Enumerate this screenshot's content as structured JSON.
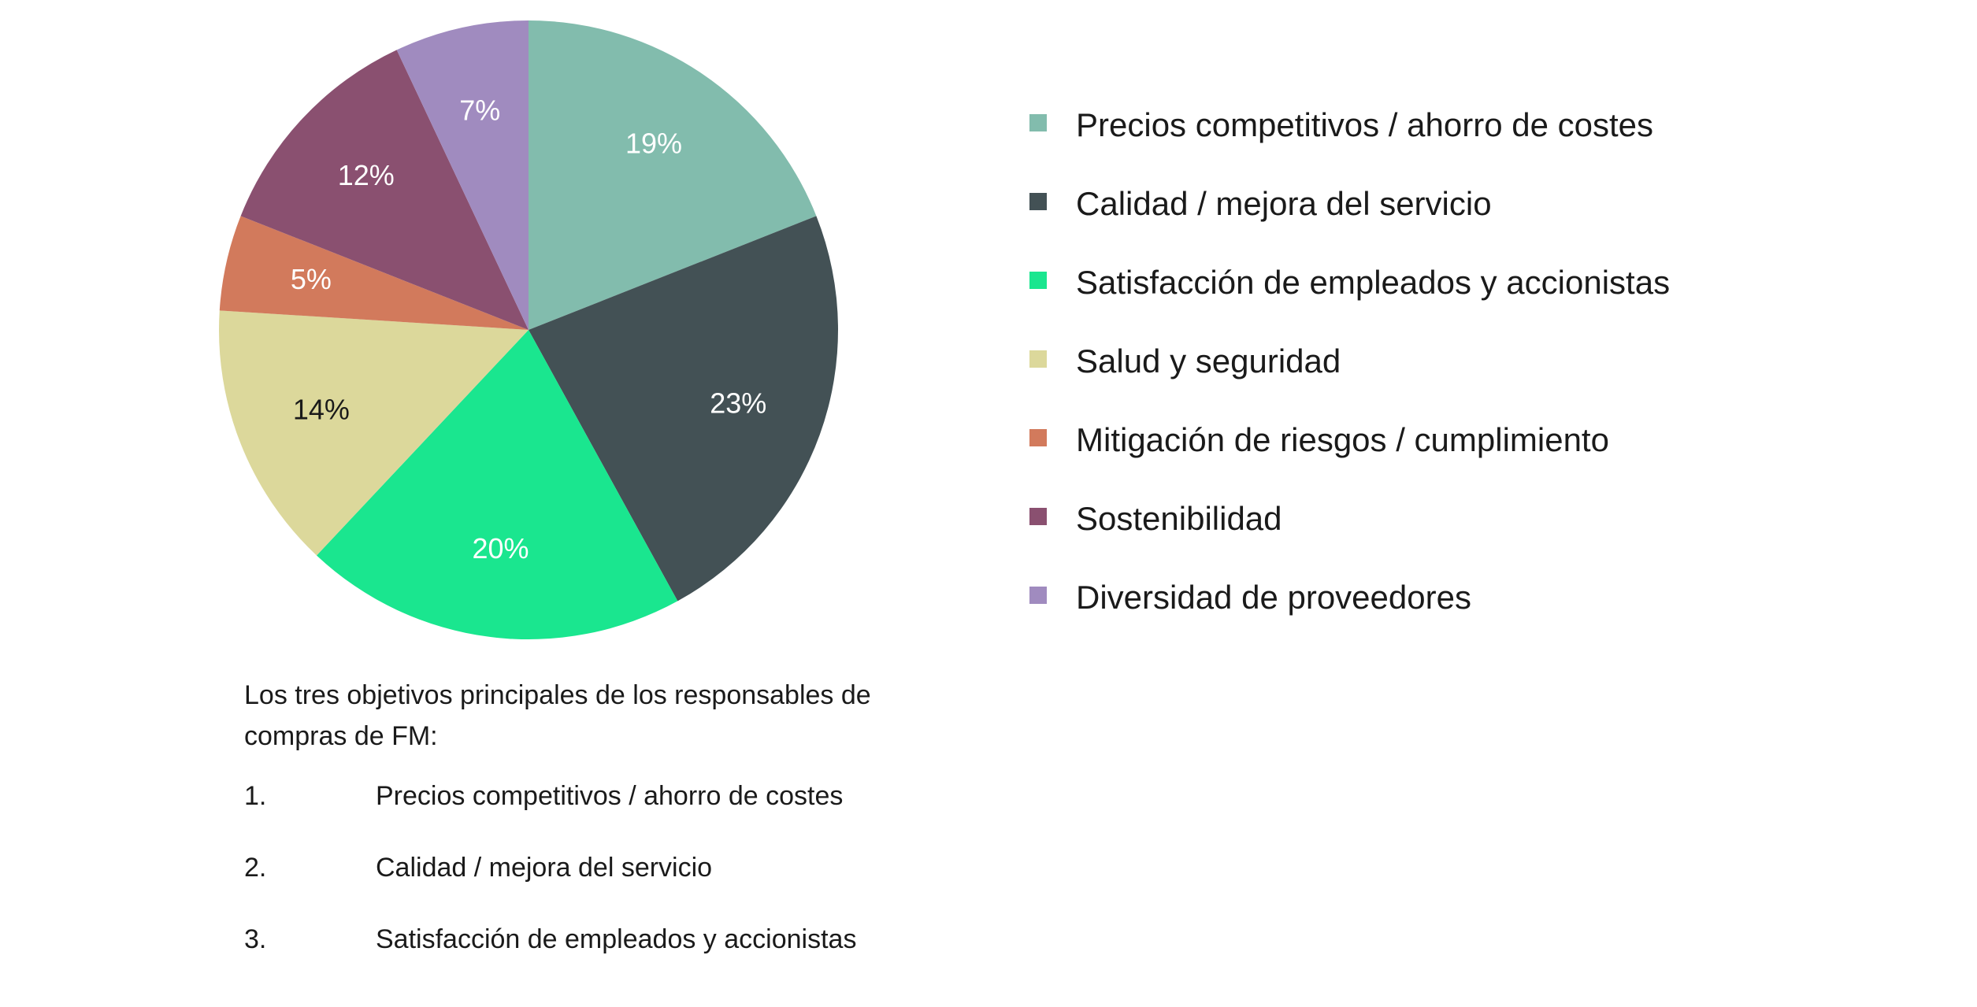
{
  "chart_data": {
    "type": "pie",
    "categories": [
      "Precios competitivos / ahorro de costes",
      "Calidad / mejora del servicio",
      "Satisfacción de empleados y accionistas",
      "Salud y seguridad",
      "Mitigación de riesgos / cumplimiento",
      "Sostenibilidad",
      "Diversidad de proveedores"
    ],
    "values": [
      19,
      23,
      20,
      14,
      5,
      12,
      7
    ],
    "value_labels": [
      "19%",
      "23%",
      "20%",
      "14%",
      "5%",
      "12%",
      "7%"
    ],
    "colors": [
      "#82bcad",
      "#435155",
      "#1ae68f",
      "#dcd89b",
      "#d27a5c",
      "#8a5070",
      "#a08bbf"
    ],
    "label_colors": [
      "#ffffff",
      "#ffffff",
      "#ffffff",
      "#1a1a1a",
      "#ffffff",
      "#ffffff",
      "#ffffff"
    ],
    "legend": "right"
  },
  "note": {
    "intro": "Los tres objetivos principales de los responsables de compras de FM:",
    "items": [
      {
        "number": "1.",
        "text": "Precios competitivos / ahorro de costes"
      },
      {
        "number": "2.",
        "text": "Calidad / mejora del servicio"
      },
      {
        "number": "3.",
        "text": "Satisfacción de empleados y accionistas"
      }
    ]
  }
}
